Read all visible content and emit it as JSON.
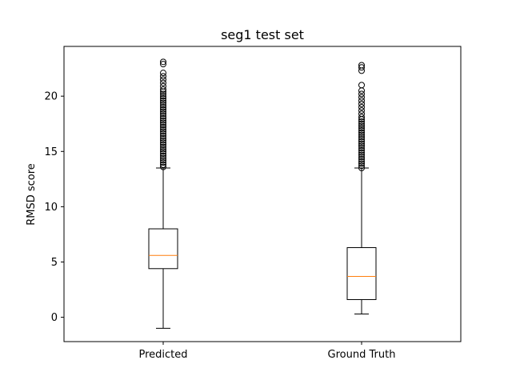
{
  "chart_data": {
    "type": "box",
    "title": "seg1 test set",
    "xlabel": "",
    "ylabel": "RMSD score",
    "ylim": [
      -2.2,
      24.5
    ],
    "yticks": [
      0,
      5,
      10,
      15,
      20
    ],
    "grid": false,
    "categories": [
      "Predicted",
      "Ground Truth"
    ],
    "boxes": [
      {
        "name": "Predicted",
        "whisker_low": -1.0,
        "q1": 4.4,
        "median": 5.6,
        "q3": 8.0,
        "whisker_high": 13.5,
        "outliers": [
          13.6,
          13.8,
          14.0,
          14.2,
          14.4,
          14.6,
          14.8,
          15.0,
          15.2,
          15.4,
          15.6,
          15.8,
          16.0,
          16.2,
          16.4,
          16.6,
          16.8,
          17.0,
          17.2,
          17.4,
          17.6,
          17.8,
          18.0,
          18.2,
          18.4,
          18.6,
          18.8,
          19.0,
          19.2,
          19.4,
          19.6,
          19.8,
          20.0,
          20.2,
          20.4,
          20.6,
          20.9,
          21.2,
          21.5,
          21.8,
          22.1,
          22.9,
          23.1
        ]
      },
      {
        "name": "Ground Truth",
        "whisker_low": 0.3,
        "q1": 1.6,
        "median": 3.7,
        "q3": 6.3,
        "whisker_high": 13.5,
        "outliers": [
          13.5,
          13.7,
          13.9,
          14.1,
          14.3,
          14.5,
          14.7,
          14.9,
          15.1,
          15.3,
          15.5,
          15.7,
          15.9,
          16.1,
          16.3,
          16.5,
          16.7,
          16.9,
          17.1,
          17.3,
          17.5,
          17.7,
          17.9,
          18.1,
          18.4,
          18.7,
          19.0,
          19.3,
          19.6,
          19.9,
          20.2,
          20.5,
          21.0,
          22.3,
          22.6,
          22.8
        ]
      }
    ],
    "colors": {
      "box": "#000000",
      "median": "#ff7f0e",
      "outlier": "#000000"
    }
  }
}
